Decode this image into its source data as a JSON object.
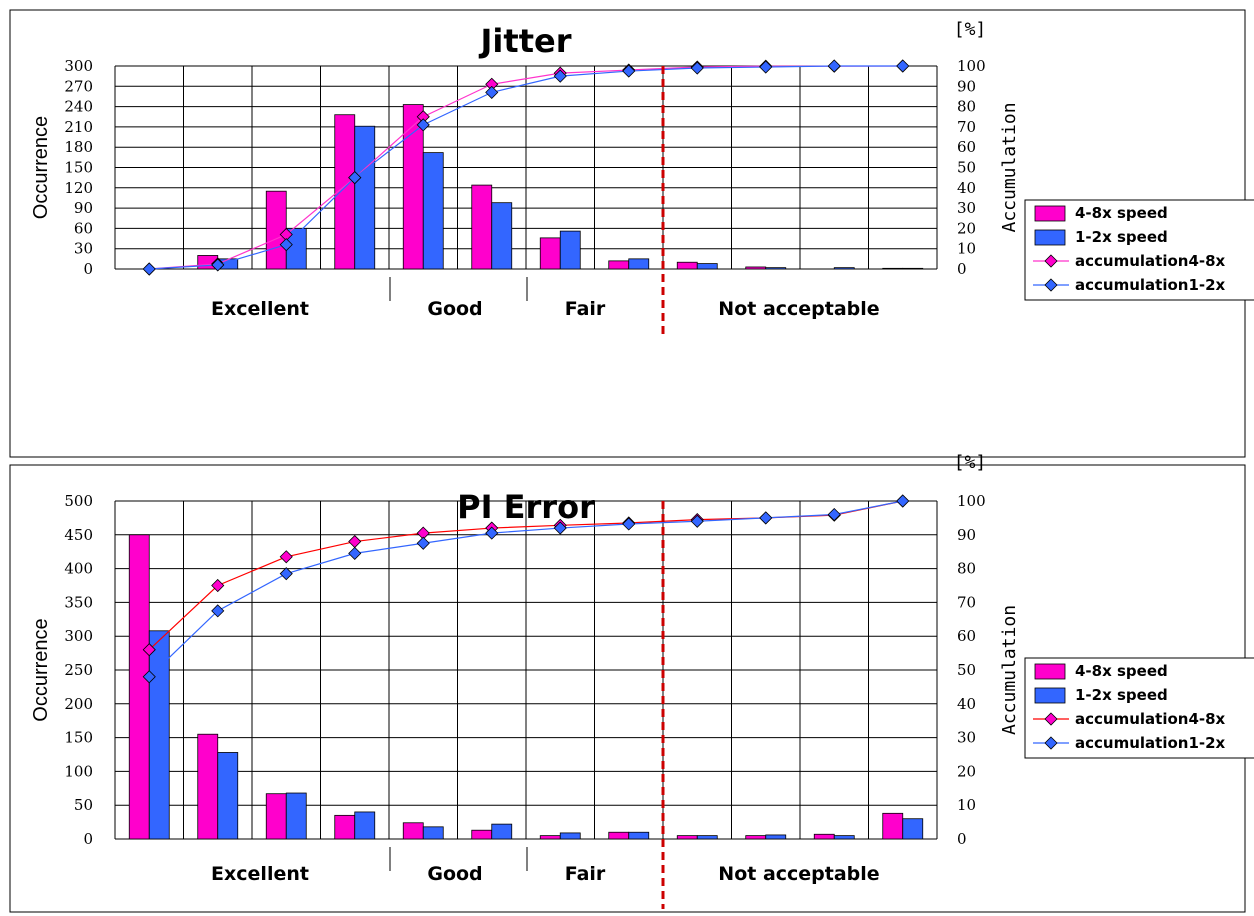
{
  "chart_data": [
    {
      "type": "bar",
      "title": "Jitter",
      "ylabel": "Occurrence",
      "y2label": "Accumulation",
      "y2unit": "[%]",
      "ylim": [
        0,
        300
      ],
      "yticks": [
        "0",
        "30",
        "60",
        "90",
        "120",
        "150",
        "180",
        "210",
        "240",
        "270",
        "300"
      ],
      "y2lim": [
        0,
        100
      ],
      "y2ticks": [
        "0",
        "10",
        "20",
        "30",
        "40",
        "50",
        "60",
        "70",
        "80",
        "90",
        "100"
      ],
      "bin_count": 12,
      "category_labels": [
        "Excellent",
        "Good",
        "Fair",
        "Not acceptable"
      ],
      "legend_position": "right",
      "grid": true,
      "threshold_after_bin": 8,
      "threshold_color": "#CC0000",
      "series": [
        {
          "name": "4-8x speed",
          "kind": "bar",
          "color": "#FF00CC",
          "values": [
            0,
            20,
            115,
            228,
            243,
            124,
            46,
            12,
            10,
            3,
            0,
            1
          ]
        },
        {
          "name": "1-2x speed",
          "kind": "bar",
          "color": "#3366FF",
          "values": [
            0,
            15,
            60,
            211,
            172,
            98,
            56,
            15,
            8,
            2,
            2,
            1
          ]
        },
        {
          "name": "accumulation4-8x",
          "kind": "line",
          "axis": "y2",
          "color": "#FF33CC",
          "marker": "#FF00CC",
          "values": [
            0,
            2.5,
            17,
            45,
            75,
            91,
            96.5,
            98,
            99.5,
            99.9,
            99.9,
            100
          ]
        },
        {
          "name": "accumulation1-2x",
          "kind": "line",
          "axis": "y2",
          "color": "#3366FF",
          "marker": "#3366FF",
          "values": [
            0,
            2,
            12,
            45,
            71,
            87,
            95,
            97.5,
            99,
            99.5,
            100,
            100
          ]
        }
      ]
    },
    {
      "type": "bar",
      "title": "PI Error",
      "ylabel": "Occurrence",
      "y2label": "Accumulation",
      "y2unit": "[%]",
      "ylim": [
        0,
        500
      ],
      "yticks": [
        "0",
        "50",
        "100",
        "150",
        "200",
        "250",
        "300",
        "350",
        "400",
        "450",
        "500"
      ],
      "y2lim": [
        0,
        100
      ],
      "y2ticks": [
        "0",
        "10",
        "20",
        "30",
        "40",
        "50",
        "60",
        "70",
        "80",
        "90",
        "100"
      ],
      "bin_count": 12,
      "category_labels": [
        "Excellent",
        "Good",
        "Fair",
        "Not acceptable"
      ],
      "legend_position": "right",
      "grid": true,
      "threshold_after_bin": 8,
      "threshold_color": "#CC0000",
      "series": [
        {
          "name": "4-8x speed",
          "kind": "bar",
          "color": "#FF00CC",
          "values": [
            450,
            155,
            67,
            35,
            24,
            13,
            5,
            10,
            5,
            5,
            7,
            38
          ]
        },
        {
          "name": "1-2x speed",
          "kind": "bar",
          "color": "#3366FF",
          "values": [
            308,
            128,
            68,
            40,
            18,
            22,
            9,
            10,
            5,
            6,
            5,
            30
          ]
        },
        {
          "name": "accumulation4-8x",
          "kind": "line",
          "axis": "y2",
          "color": "#FF0000",
          "marker": "#FF00CC",
          "values": [
            56,
            75,
            83.5,
            88,
            90.5,
            92,
            92.8,
            93.5,
            94.5,
            95,
            95.8,
            100
          ]
        },
        {
          "name": "accumulation1-2x",
          "kind": "line",
          "axis": "y2",
          "color": "#3366FF",
          "marker": "#3366FF",
          "values": [
            48,
            67.5,
            78.5,
            84.5,
            87.5,
            90.5,
            92,
            93.2,
            94,
            95,
            96,
            100
          ]
        }
      ]
    }
  ]
}
